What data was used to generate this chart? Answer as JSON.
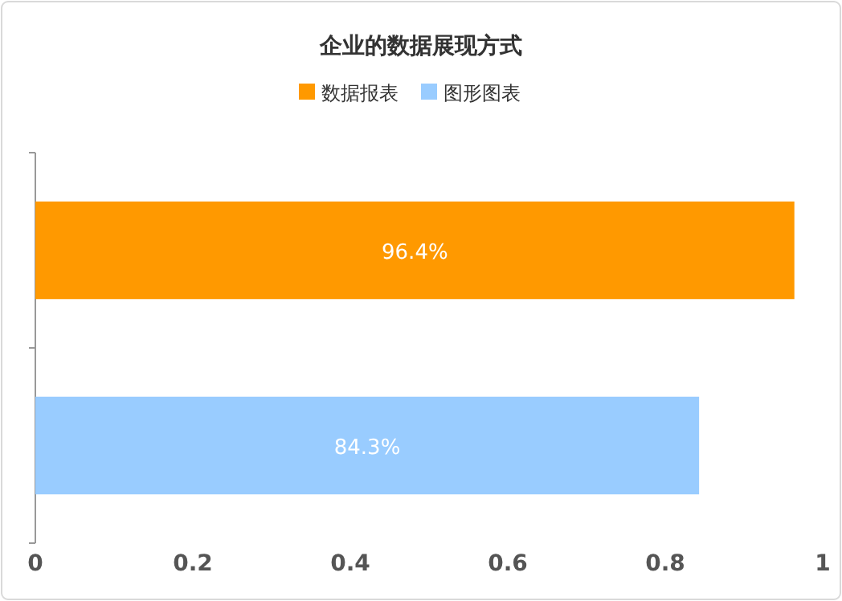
{
  "chart_data": {
    "type": "bar",
    "orientation": "horizontal",
    "title": "企业的数据展现方式",
    "categories": [
      null,
      null
    ],
    "series": [
      {
        "name": "数据报表",
        "color": "#ff9900",
        "values": [
          0.964,
          null
        ],
        "value_labels": [
          "96.4%",
          null
        ]
      },
      {
        "name": "图形图表",
        "color": "#99ccff",
        "values": [
          null,
          0.843
        ],
        "value_labels": [
          null,
          "84.3%"
        ]
      }
    ],
    "xlim": [
      0,
      1
    ],
    "xticks": [
      0,
      0.2,
      0.4,
      0.6,
      0.8,
      1
    ],
    "tick_labels": "x",
    "legend": "top"
  }
}
